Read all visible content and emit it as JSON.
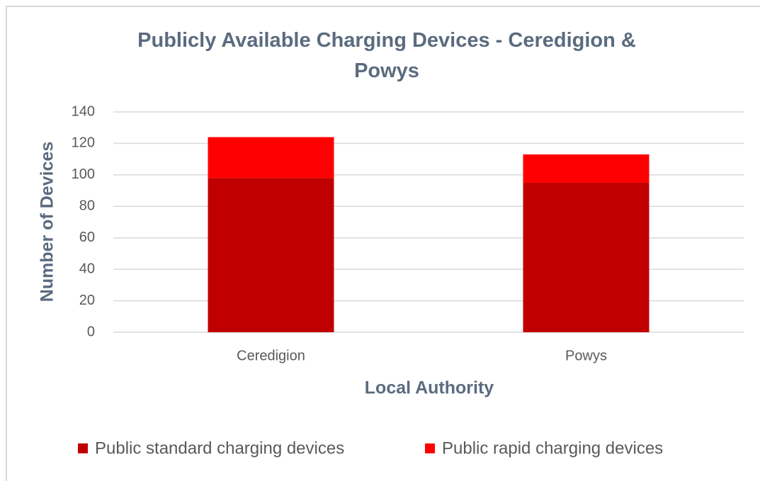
{
  "chart_data": {
    "type": "bar",
    "stacked": true,
    "title": "Publicly Available Charging Devices - Ceredigion & Powys",
    "x_label": "Local Authority",
    "y_label": "Number of Devices",
    "categories": [
      "Ceredigion",
      "Powys"
    ],
    "series": [
      {
        "name": "Public standard charging devices",
        "color": "#c00000",
        "values": [
          98,
          95
        ]
      },
      {
        "name": "Public rapid charging devices",
        "color": "#ff0000",
        "values": [
          26,
          18
        ]
      }
    ],
    "ylim": [
      0,
      140
    ],
    "yticks": [
      0,
      20,
      40,
      60,
      80,
      100,
      120,
      140
    ],
    "grid": true,
    "legend": "bottom"
  }
}
